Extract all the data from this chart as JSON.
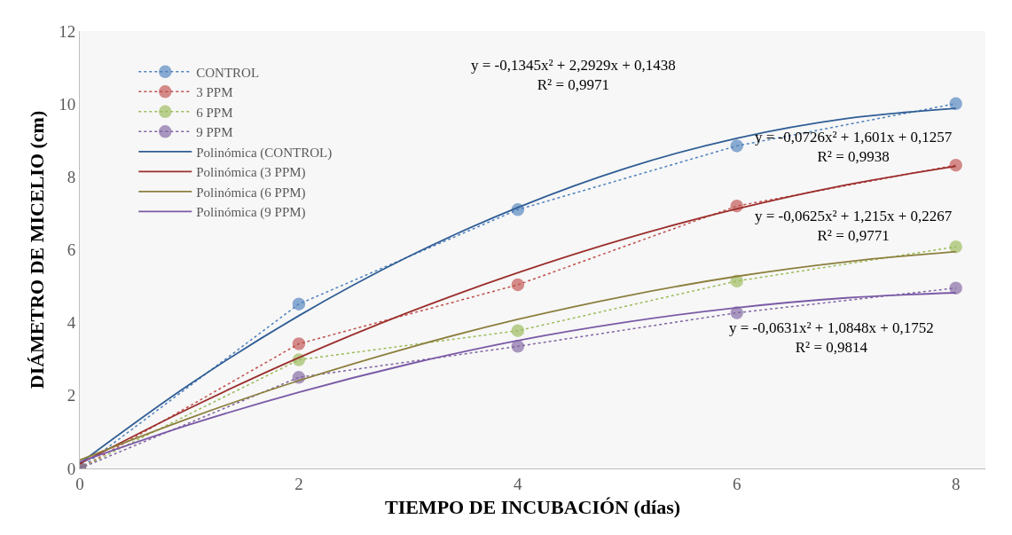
{
  "chart_data": {
    "type": "line",
    "xlabel": "TIEMPO DE INCUBACIÓN (días)",
    "ylabel": "DIÁMETRO DE MICELIO (cm)",
    "x": [
      0,
      2,
      4,
      6,
      8
    ],
    "xlim": [
      0,
      8.27
    ],
    "xticks": [
      0,
      2,
      4,
      6,
      8
    ],
    "ylim": [
      0,
      12
    ],
    "yticks": [
      0,
      2,
      4,
      6,
      8,
      10,
      12
    ],
    "grid": false,
    "legend": "top left",
    "series": [
      {
        "name": "CONTROL",
        "color": "#4f81bd",
        "values": [
          0,
          4.51,
          7.1,
          8.85,
          10.01
        ],
        "marker": "circle",
        "line_style": "dotted"
      },
      {
        "name": "3 PPM",
        "color": "#c0504d",
        "values": [
          0,
          3.42,
          5.04,
          7.2,
          8.32
        ],
        "marker": "circle",
        "line_style": "dotted"
      },
      {
        "name": "6 PPM",
        "color": "#9bbb59",
        "values": [
          0,
          2.98,
          3.78,
          5.14,
          6.08
        ],
        "marker": "circle",
        "line_style": "dotted"
      },
      {
        "name": "9 PPM",
        "color": "#8064a2",
        "values": [
          0,
          2.5,
          3.35,
          4.27,
          4.95
        ],
        "marker": "circle",
        "line_style": "dotted"
      },
      {
        "name": "Polinómica (CONTROL)",
        "color": "#2f5d95",
        "x": [
          0,
          1,
          2,
          3,
          4,
          5,
          6,
          7,
          8
        ],
        "values": [
          0.14,
          2.3,
          4.19,
          5.81,
          7.16,
          8.25,
          9.06,
          9.6,
          9.88
        ],
        "marker": "none",
        "line_style": "solid"
      },
      {
        "name": "Polinómica (3 PPM)",
        "color": "#9b2f2c",
        "x": [
          0,
          1,
          2,
          3,
          4,
          5,
          6,
          7,
          8
        ],
        "values": [
          0.13,
          1.65,
          3.04,
          4.28,
          5.37,
          6.32,
          7.12,
          7.78,
          8.29
        ],
        "marker": "none",
        "line_style": "solid"
      },
      {
        "name": "Polinómica (6 PPM)",
        "color": "#8c7f3e",
        "x": [
          0,
          1,
          2,
          3,
          4,
          5,
          6,
          7,
          8
        ],
        "values": [
          0.23,
          1.38,
          2.41,
          3.31,
          4.09,
          4.74,
          5.27,
          5.67,
          5.95
        ],
        "marker": "none",
        "line_style": "solid"
      },
      {
        "name": "Polinómica (9 PPM)",
        "color": "#7a5aa6",
        "x": [
          0,
          1,
          2,
          3,
          4,
          5,
          6,
          7,
          8
        ],
        "values": [
          0.18,
          1.2,
          2.09,
          2.86,
          3.51,
          4.02,
          4.41,
          4.68,
          4.82
        ],
        "marker": "none",
        "line_style": "solid"
      }
    ],
    "annotations": [
      "y = -0,1345x² + 2,2929x + 0,1438\nR² = 0,9971",
      "y = -0,0726x² + 1,601x + 0,1257\nR² = 0,9938",
      "y = -0,0625x² + 1,215x + 0,2267\nR² = 0,9771",
      "y = -0,0631x² + 1,0848x + 0,1752\nR² = 0,9814"
    ]
  }
}
